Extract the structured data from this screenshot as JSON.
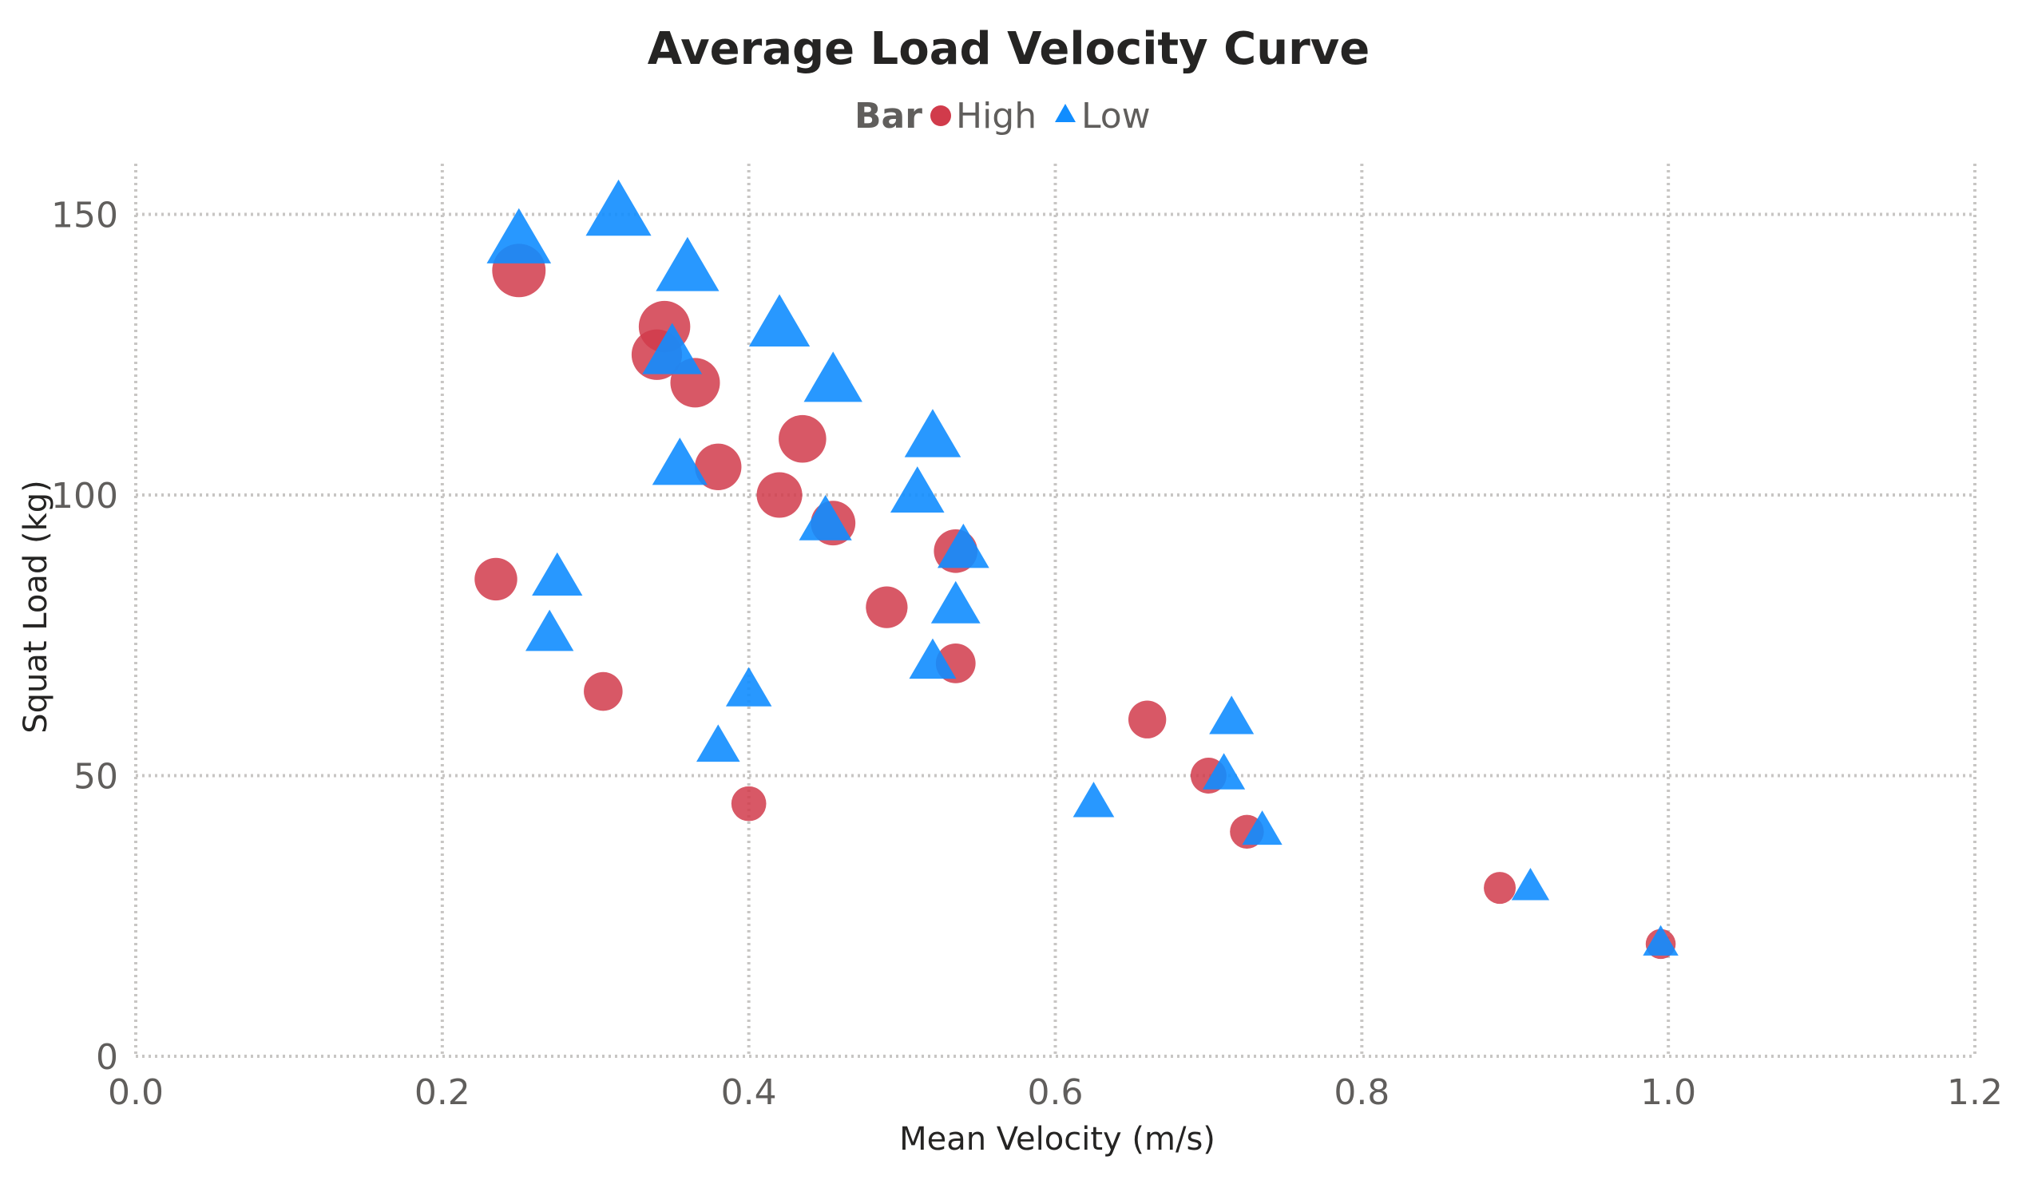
{
  "chart_data": {
    "type": "scatter",
    "title": "Average Load Velocity Curve",
    "xlabel": "Mean Velocity (m/s)",
    "ylabel": "Squat Load (kg)",
    "xlim": [
      0,
      1.2
    ],
    "ylim": [
      0,
      160
    ],
    "x_ticks": [
      "0.0",
      "0.2",
      "0.4",
      "0.6",
      "0.8",
      "1.0",
      "1.2"
    ],
    "y_ticks": [
      "0",
      "50",
      "100",
      "150"
    ],
    "grid": true,
    "legend": {
      "title": "Bar",
      "position": "top-center",
      "entries": [
        "High",
        "Low"
      ]
    },
    "series": [
      {
        "name": "High",
        "marker": "circle",
        "color": "#D13B4B",
        "points": [
          {
            "x": 0.25,
            "y": 140
          },
          {
            "x": 0.345,
            "y": 130
          },
          {
            "x": 0.34,
            "y": 125
          },
          {
            "x": 0.365,
            "y": 120
          },
          {
            "x": 0.435,
            "y": 110
          },
          {
            "x": 0.38,
            "y": 105
          },
          {
            "x": 0.42,
            "y": 100
          },
          {
            "x": 0.455,
            "y": 95
          },
          {
            "x": 0.535,
            "y": 90
          },
          {
            "x": 0.235,
            "y": 85
          },
          {
            "x": 0.49,
            "y": 80
          },
          {
            "x": 0.535,
            "y": 70
          },
          {
            "x": 0.305,
            "y": 65
          },
          {
            "x": 0.66,
            "y": 60
          },
          {
            "x": 0.7,
            "y": 50
          },
          {
            "x": 0.4,
            "y": 45
          },
          {
            "x": 0.725,
            "y": 40
          },
          {
            "x": 0.89,
            "y": 30
          },
          {
            "x": 0.995,
            "y": 20
          }
        ]
      },
      {
        "name": "Low",
        "marker": "triangle",
        "color": "#118DFF",
        "points": [
          {
            "x": 0.315,
            "y": 150
          },
          {
            "x": 0.25,
            "y": 145
          },
          {
            "x": 0.36,
            "y": 140
          },
          {
            "x": 0.42,
            "y": 130
          },
          {
            "x": 0.35,
            "y": 125
          },
          {
            "x": 0.455,
            "y": 120
          },
          {
            "x": 0.52,
            "y": 110
          },
          {
            "x": 0.355,
            "y": 105
          },
          {
            "x": 0.51,
            "y": 100
          },
          {
            "x": 0.45,
            "y": 95
          },
          {
            "x": 0.54,
            "y": 90
          },
          {
            "x": 0.275,
            "y": 85
          },
          {
            "x": 0.535,
            "y": 80
          },
          {
            "x": 0.27,
            "y": 75
          },
          {
            "x": 0.52,
            "y": 70
          },
          {
            "x": 0.4,
            "y": 65
          },
          {
            "x": 0.715,
            "y": 60
          },
          {
            "x": 0.38,
            "y": 55
          },
          {
            "x": 0.71,
            "y": 50
          },
          {
            "x": 0.625,
            "y": 45
          },
          {
            "x": 0.735,
            "y": 40
          },
          {
            "x": 0.91,
            "y": 30
          },
          {
            "x": 0.995,
            "y": 20
          }
        ]
      }
    ]
  }
}
